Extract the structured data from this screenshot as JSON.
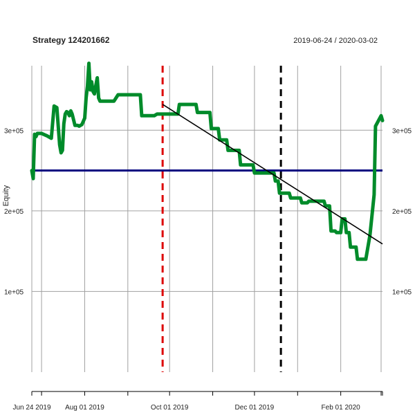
{
  "chart_data": {
    "type": "line",
    "title": "Strategy 124201662",
    "date_range": "2019-06-24 / 2020-03-02",
    "ylabel": "Equity",
    "xlabel": "",
    "x_ticks": [
      {
        "date": "2019-06-24",
        "label": "Jun 24 2019"
      },
      {
        "date": "2019-08-01",
        "label": "Aug 01 2019"
      },
      {
        "date": "2019-10-01",
        "label": "Oct 01 2019"
      },
      {
        "date": "2019-12-01",
        "label": "Dec 01 2019"
      },
      {
        "date": "2020-02-01",
        "label": "Feb 01 2020"
      }
    ],
    "x_minor_ticks": [
      "2019-07-01",
      "2019-09-01",
      "2019-11-01",
      "2020-01-01",
      "2020-03-01"
    ],
    "y_ticks": [
      {
        "value": 100000,
        "label": "1e+05"
      },
      {
        "value": 200000,
        "label": "2e+05"
      },
      {
        "value": 300000,
        "label": "3e+05"
      }
    ],
    "xlim": [
      "2019-06-24",
      "2020-03-02"
    ],
    "ylim": [
      0,
      380000
    ],
    "grid": true,
    "series": [
      {
        "color": "#008b2a",
        "x": [
          "2019-06-24",
          "2019-06-25",
          "2019-06-26",
          "2019-06-27",
          "2019-06-28",
          "2019-07-01",
          "2019-07-05",
          "2019-07-08",
          "2019-07-10",
          "2019-07-12",
          "2019-07-14",
          "2019-07-15",
          "2019-07-16",
          "2019-07-17",
          "2019-07-18",
          "2019-07-19",
          "2019-07-20",
          "2019-07-21",
          "2019-07-22",
          "2019-07-23",
          "2019-07-25",
          "2019-07-27",
          "2019-07-28",
          "2019-07-30",
          "2019-08-01",
          "2019-08-02",
          "2019-08-03",
          "2019-08-04",
          "2019-08-05",
          "2019-08-06",
          "2019-08-07",
          "2019-08-08",
          "2019-08-09",
          "2019-08-10",
          "2019-08-11",
          "2019-08-12",
          "2019-08-15",
          "2019-08-20",
          "2019-08-22",
          "2019-08-25",
          "2019-09-10",
          "2019-09-11",
          "2019-09-20",
          "2019-09-22",
          "2019-09-23",
          "2019-09-30",
          "2019-10-01",
          "2019-10-07",
          "2019-10-08",
          "2019-10-20",
          "2019-10-21",
          "2019-10-30",
          "2019-10-31",
          "2019-11-05",
          "2019-11-06",
          "2019-11-11",
          "2019-11-12",
          "2019-11-20",
          "2019-11-21",
          "2019-11-30",
          "2019-12-01",
          "2019-12-12",
          "2019-12-13",
          "2019-12-15",
          "2019-12-16",
          "2019-12-18",
          "2019-12-19",
          "2019-12-26",
          "2019-12-27",
          "2020-01-03",
          "2020-01-04",
          "2020-01-08",
          "2020-01-09",
          "2020-01-20",
          "2020-01-21",
          "2020-01-24",
          "2020-01-25",
          "2020-01-28",
          "2020-01-29",
          "2020-02-01",
          "2020-02-02",
          "2020-02-04",
          "2020-02-05",
          "2020-02-07",
          "2020-02-08",
          "2020-02-12",
          "2020-02-13",
          "2020-02-18",
          "2020-02-19",
          "2020-02-22",
          "2020-02-25",
          "2020-02-26",
          "2020-03-01",
          "2020-03-02"
        ],
        "y": [
          250000,
          240000,
          295000,
          292000,
          296000,
          296000,
          293000,
          290000,
          330000,
          328000,
          282000,
          272000,
          275000,
          308000,
          320000,
          323000,
          322000,
          318000,
          324000,
          320000,
          306000,
          306000,
          305000,
          307000,
          315000,
          340000,
          355000,
          383000,
          350000,
          360000,
          348000,
          345000,
          355000,
          365000,
          340000,
          336000,
          336000,
          336000,
          336000,
          344000,
          344000,
          318000,
          318000,
          320000,
          320000,
          320000,
          320000,
          320000,
          332000,
          332000,
          322000,
          322000,
          302000,
          302000,
          288000,
          288000,
          275000,
          275000,
          257000,
          257000,
          247000,
          247000,
          247000,
          247000,
          237000,
          237000,
          222000,
          222000,
          216000,
          216000,
          210000,
          210000,
          212000,
          212000,
          206000,
          206000,
          175000,
          175000,
          173000,
          173000,
          190000,
          190000,
          173000,
          173000,
          155000,
          155000,
          140000,
          140000,
          140000,
          170000,
          220000,
          305000,
          318000,
          312000
        ]
      }
    ],
    "reference_lines": [
      {
        "orientation": "horizontal",
        "value": 250000,
        "color": "#000080",
        "style": "solid"
      },
      {
        "orientation": "vertical",
        "date": "2019-09-26",
        "color": "#dd0000",
        "style": "dashed"
      },
      {
        "orientation": "vertical",
        "date": "2019-12-20",
        "color": "#000000",
        "style": "dashed"
      }
    ],
    "trend_line": {
      "color": "#000000",
      "x": [
        "2019-09-26",
        "2020-03-02"
      ],
      "y": [
        332000,
        159000
      ]
    }
  }
}
